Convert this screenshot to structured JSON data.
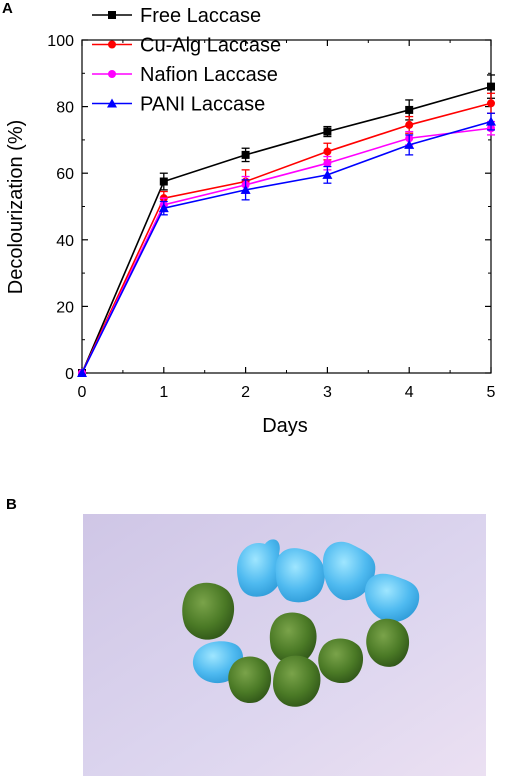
{
  "panels": {
    "a": "A",
    "b": "B"
  },
  "chart_data": {
    "type": "line",
    "xlabel": "Days",
    "ylabel": "Decolourization (%)",
    "xlim": [
      0,
      5
    ],
    "ylim": [
      0,
      100
    ],
    "x": [
      0,
      1,
      2,
      3,
      4,
      5
    ],
    "xticks": [
      "0",
      "1",
      "2",
      "3",
      "4",
      "5"
    ],
    "yticks": [
      "0",
      "20",
      "40",
      "60",
      "80",
      "100"
    ],
    "grid": false,
    "legend_position": "top-left",
    "series": [
      {
        "name": "Free Laccase",
        "color": "#000000",
        "marker": "square",
        "values": [
          0,
          57.5,
          65.5,
          72.5,
          79,
          86
        ],
        "errors": [
          0,
          2.5,
          2,
          1.5,
          3,
          3.5
        ]
      },
      {
        "name": "Cu-Alg Laccase",
        "color": "#ff0000",
        "marker": "circle",
        "values": [
          0,
          52.5,
          57.5,
          66.5,
          74.5,
          81
        ],
        "errors": [
          0,
          2,
          3.5,
          2.5,
          2.5,
          3
        ]
      },
      {
        "name": "Nafion Laccase",
        "color": "#ff00ff",
        "marker": "circle",
        "values": [
          0,
          50.5,
          56.5,
          63,
          70.5,
          73.5
        ],
        "errors": [
          0,
          2,
          2.5,
          2,
          2,
          2
        ]
      },
      {
        "name": "PANI Laccase",
        "color": "#0000ff",
        "marker": "triangle",
        "values": [
          0,
          49.5,
          55,
          59.5,
          68.5,
          75.5
        ],
        "errors": [
          0,
          2,
          3,
          2.5,
          3,
          2.5
        ]
      }
    ]
  },
  "photo": {
    "background": "#d4cfe8",
    "blue_bead": "#55c0ee",
    "green_bead": "#4a7a2a"
  }
}
